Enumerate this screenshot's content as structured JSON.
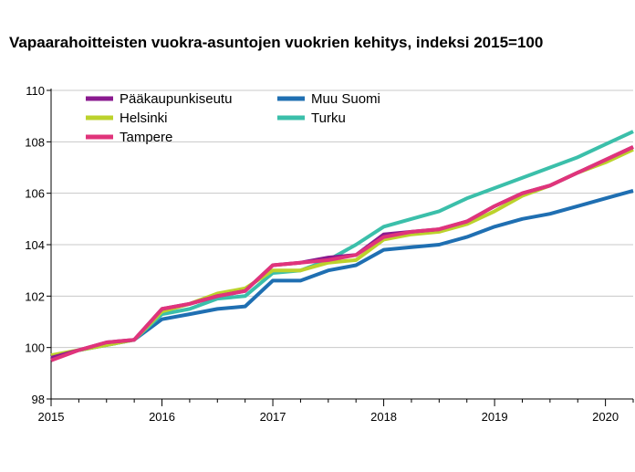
{
  "chart_data": {
    "type": "line",
    "title": "Vapaarahoitteisten vuokra-asuntojen vuokrien kehitys, indeksi 2015=100",
    "xlabel": "",
    "ylabel": "",
    "ylim": [
      98,
      110
    ],
    "xlim": [
      2015,
      2020.25
    ],
    "yticks": [
      98,
      100,
      102,
      104,
      106,
      108,
      110
    ],
    "ytick_labels": [
      "98",
      "100",
      "102",
      "104",
      "106",
      "108",
      "110"
    ],
    "xticks": [
      2015,
      2016,
      2017,
      2018,
      2019,
      2020
    ],
    "xtick_labels": [
      "2015",
      "2016",
      "2017",
      "2018",
      "2019",
      "2020"
    ],
    "grid": "horizontal",
    "legend_position": "top-left",
    "x": [
      2015.0,
      2015.25,
      2015.5,
      2015.75,
      2016.0,
      2016.25,
      2016.5,
      2016.75,
      2017.0,
      2017.25,
      2017.5,
      2017.75,
      2018.0,
      2018.25,
      2018.5,
      2018.75,
      2019.0,
      2019.25,
      2019.5,
      2019.75,
      2020.0,
      2020.25
    ],
    "series": [
      {
        "name": "Pääkaupunkiseutu",
        "color": "#8a1a8f",
        "values": [
          99.6,
          99.9,
          100.2,
          100.3,
          101.5,
          101.7,
          102.0,
          102.2,
          103.2,
          103.3,
          103.5,
          103.6,
          104.4,
          104.5,
          104.6,
          104.9,
          105.5,
          106.0,
          106.3,
          106.8,
          107.3,
          107.8
        ]
      },
      {
        "name": "Muu Suomi",
        "color": "#1f6fb2",
        "values": [
          99.6,
          99.9,
          100.1,
          100.3,
          101.1,
          101.3,
          101.5,
          101.6,
          102.6,
          102.6,
          103.0,
          103.2,
          103.8,
          103.9,
          104.0,
          104.3,
          104.7,
          105.0,
          105.2,
          105.5,
          105.8,
          106.1
        ]
      },
      {
        "name": "Helsinki",
        "color": "#bcd22c",
        "values": [
          99.7,
          99.9,
          100.1,
          100.3,
          101.4,
          101.7,
          102.1,
          102.3,
          103.0,
          103.0,
          103.3,
          103.4,
          104.2,
          104.4,
          104.5,
          104.8,
          105.3,
          105.9,
          106.3,
          106.8,
          107.2,
          107.7
        ]
      },
      {
        "name": "Turku",
        "color": "#3bbfaa",
        "values": [
          99.6,
          99.9,
          100.1,
          100.3,
          101.3,
          101.5,
          101.9,
          102.0,
          102.9,
          103.0,
          103.4,
          104.0,
          104.7,
          105.0,
          105.3,
          105.8,
          106.2,
          106.6,
          107.0,
          107.4,
          107.9,
          108.4
        ]
      },
      {
        "name": "Tampere",
        "color": "#e0347b",
        "values": [
          99.5,
          99.9,
          100.2,
          100.3,
          101.5,
          101.7,
          102.0,
          102.2,
          103.2,
          103.3,
          103.4,
          103.6,
          104.3,
          104.5,
          104.6,
          104.9,
          105.5,
          106.0,
          106.3,
          106.8,
          107.3,
          107.8
        ]
      }
    ]
  }
}
